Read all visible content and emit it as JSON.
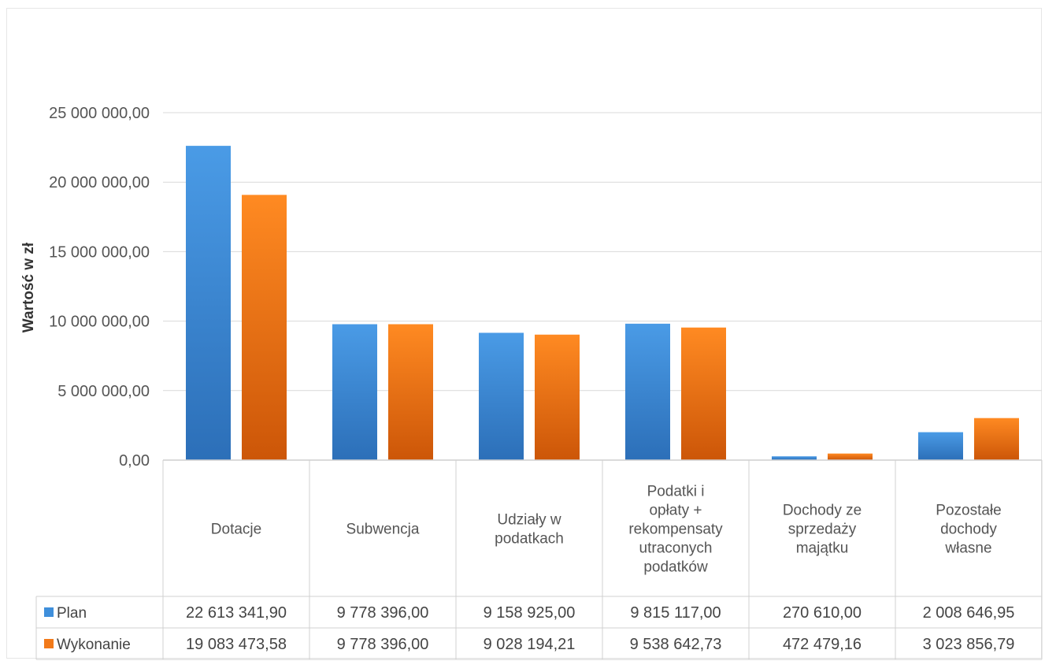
{
  "chart_data": {
    "type": "bar",
    "title": "",
    "ylabel": "Wartość w zł",
    "xlabel": "",
    "ylim": [
      0,
      25000000
    ],
    "y_ticks": [
      0,
      5000000,
      10000000,
      15000000,
      20000000,
      25000000
    ],
    "y_tick_labels": [
      "0,00",
      "5 000 000,00",
      "10 000 000,00",
      "15 000 000,00",
      "20 000 000,00",
      "25 000 000,00"
    ],
    "grid": true,
    "legend_placement": "data-table",
    "categories": [
      [
        "Dotacje"
      ],
      [
        "Subwencja"
      ],
      [
        "Udziały w",
        "podatkach"
      ],
      [
        "Podatki i",
        "opłaty +",
        "rekompensaty",
        "utraconych",
        "podatków"
      ],
      [
        "Dochody ze",
        "sprzedaży",
        "majątku"
      ],
      [
        "Pozostałe",
        "dochody",
        "własne"
      ]
    ],
    "series": [
      {
        "name": "Plan",
        "color": "#3f8fdb",
        "values": [
          22613341.9,
          9778396.0,
          9158925.0,
          9815117.0,
          270610.0,
          2008646.95
        ],
        "labels": [
          "22 613 341,90",
          "9 778 396,00",
          "9 158 925,00",
          "9 815 117,00",
          "270 610,00",
          "2 008 646,95"
        ]
      },
      {
        "name": "Wykonanie",
        "color": "#f27a1a",
        "values": [
          19083473.58,
          9778396.0,
          9028194.21,
          9538642.73,
          472479.16,
          3023856.79
        ],
        "labels": [
          "19 083 473,58",
          "9 778 396,00",
          "9 028 194,21",
          "9 538 642,73",
          "472 479,16",
          "3 023 856,79"
        ]
      }
    ]
  }
}
